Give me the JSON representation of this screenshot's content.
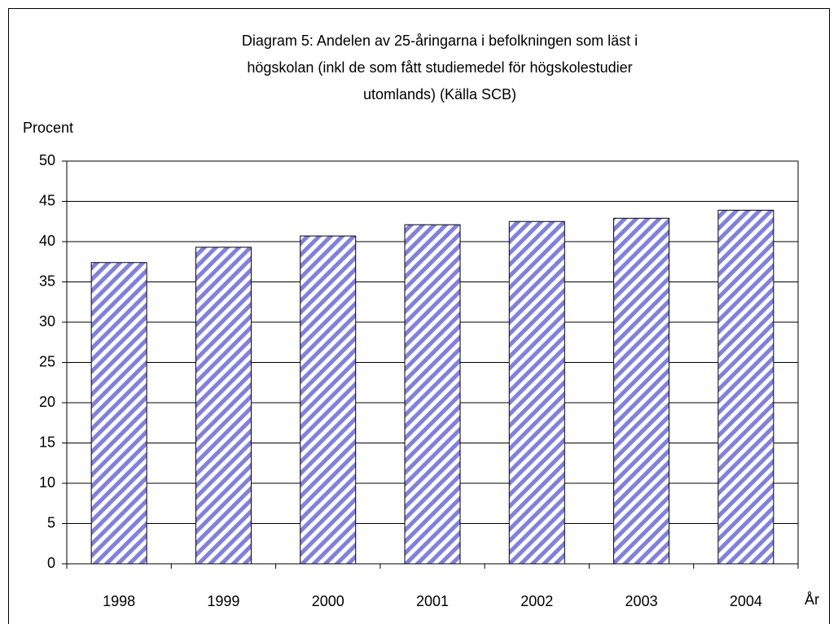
{
  "chart_data": {
    "type": "bar",
    "title": [
      "Diagram 5:  Andelen av 25-åringarna i befolkningen som läst i",
      "högskolan (inkl de som fått studiemedel för högskolestudier",
      "utomlands) (Källa SCB)"
    ],
    "y_label": "Procent",
    "x_label": "År",
    "categories": [
      "1998",
      "1999",
      "2000",
      "2001",
      "2002",
      "2003",
      "2004"
    ],
    "values": [
      37.4,
      39.3,
      40.7,
      42.1,
      42.5,
      42.9,
      43.9
    ],
    "color": "#8080e0",
    "ylim": [
      0,
      50
    ],
    "yticks": [
      0,
      5,
      10,
      15,
      20,
      25,
      30,
      35,
      40,
      45,
      50
    ],
    "grid": true
  }
}
